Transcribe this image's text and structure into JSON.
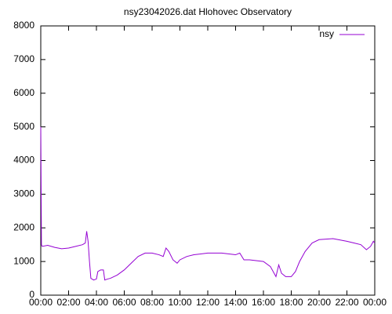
{
  "chart_data": {
    "type": "line",
    "title": "nsy23042026.dat Hlohovec Observatory",
    "x": [
      0,
      0.05,
      0.1,
      0.5,
      1.0,
      1.5,
      2.0,
      2.5,
      3.0,
      3.2,
      3.3,
      3.4,
      3.5,
      3.6,
      3.8,
      4.0,
      4.1,
      4.3,
      4.5,
      4.6,
      4.8,
      5.0,
      5.5,
      6.0,
      6.5,
      7.0,
      7.5,
      8.0,
      8.5,
      8.8,
      9.0,
      9.2,
      9.5,
      9.8,
      10.0,
      10.5,
      11.0,
      12.0,
      13.0,
      14.0,
      14.3,
      14.6,
      15.0,
      16.0,
      16.5,
      16.9,
      17.1,
      17.3,
      17.6,
      18.0,
      18.3,
      18.6,
      19.0,
      19.5,
      20.0,
      21.0,
      22.0,
      22.5,
      23.0,
      23.4,
      23.7,
      23.9,
      24.0
    ],
    "series": [
      {
        "name": "nsy",
        "color": "#9400d3",
        "values": [
          5000,
          1500,
          1450,
          1480,
          1420,
          1380,
          1400,
          1450,
          1500,
          1550,
          1900,
          1600,
          1000,
          500,
          450,
          480,
          700,
          750,
          750,
          450,
          480,
          500,
          600,
          750,
          950,
          1150,
          1250,
          1250,
          1200,
          1150,
          1400,
          1300,
          1050,
          950,
          1050,
          1150,
          1200,
          1250,
          1250,
          1200,
          1250,
          1050,
          1050,
          1000,
          850,
          550,
          900,
          650,
          550,
          550,
          700,
          1000,
          1300,
          1550,
          1650,
          1680,
          1600,
          1550,
          1500,
          1350,
          1450,
          1600,
          1550
        ]
      }
    ],
    "xlim": [
      0,
      24
    ],
    "xticks": [
      {
        "value": 0,
        "label": "00:00"
      },
      {
        "value": 2,
        "label": "02:00"
      },
      {
        "value": 4,
        "label": "04:00"
      },
      {
        "value": 6,
        "label": "06:00"
      },
      {
        "value": 8,
        "label": "08:00"
      },
      {
        "value": 10,
        "label": "10:00"
      },
      {
        "value": 12,
        "label": "12:00"
      },
      {
        "value": 14,
        "label": "14:00"
      },
      {
        "value": 16,
        "label": "16:00"
      },
      {
        "value": 18,
        "label": "18:00"
      },
      {
        "value": 20,
        "label": "20:00"
      },
      {
        "value": 22,
        "label": "22:00"
      },
      {
        "value": 24,
        "label": "00:00"
      }
    ],
    "ylim": [
      0,
      8000
    ],
    "yticks": [
      0,
      1000,
      2000,
      3000,
      4000,
      5000,
      6000,
      7000,
      8000
    ],
    "legend": "top-right"
  }
}
